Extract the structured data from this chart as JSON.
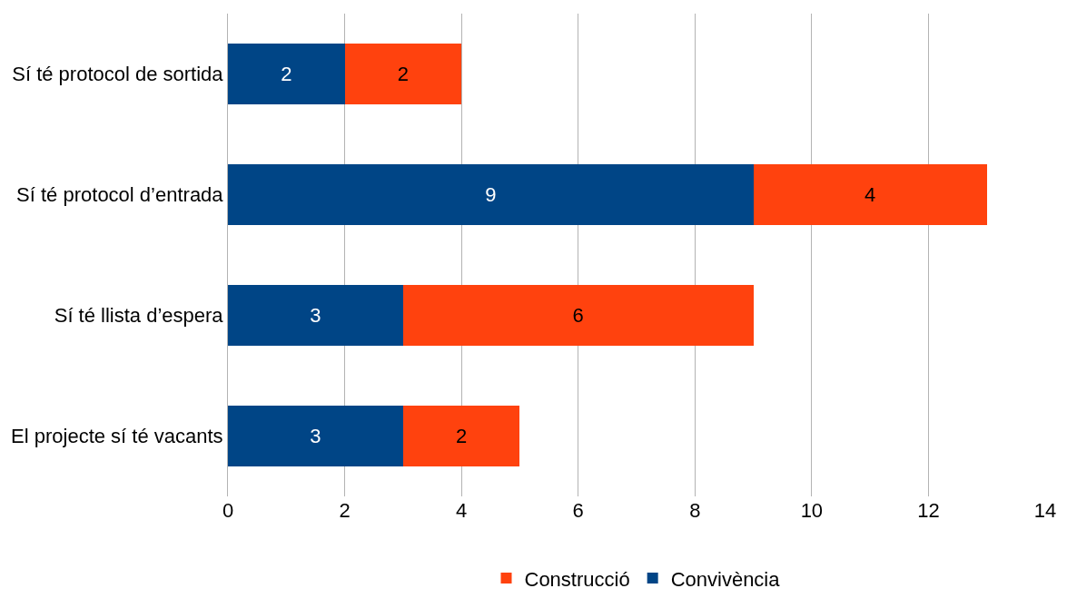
{
  "chart_data": {
    "type": "bar",
    "orientation": "horizontal",
    "stacked": true,
    "data_labels": true,
    "grid": "x",
    "legend": "bottom",
    "categories": [
      "Sí té protocol de sortida",
      "Sí té protocol d’entrada",
      "Sí té llista d’espera",
      "El projecte sí té vacants"
    ],
    "series": [
      {
        "name": "Convivència",
        "color": "#004586",
        "values": [
          2,
          9,
          3,
          3
        ]
      },
      {
        "name": "Construcció",
        "color": "#ff420e",
        "values": [
          2,
          4,
          6,
          2
        ]
      }
    ],
    "xlim": [
      0,
      14
    ],
    "xticks": [
      0,
      2,
      4,
      6,
      8,
      10,
      12,
      14
    ]
  }
}
